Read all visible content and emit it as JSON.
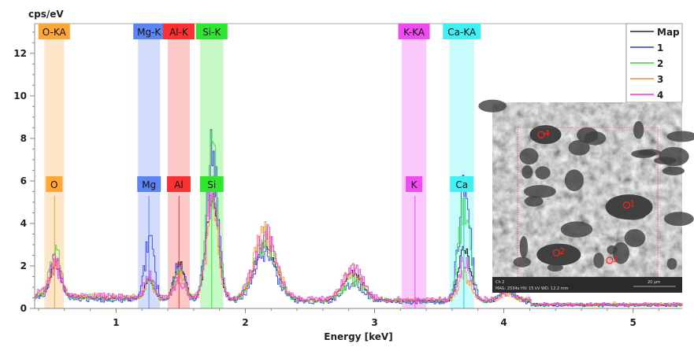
{
  "chart_data": {
    "type": "line",
    "title": "",
    "xlabel": "Energy [keV]",
    "ylabel": "cps/eV",
    "xlim": [
      0.37,
      5.38
    ],
    "ylim": [
      0,
      13.4
    ],
    "xticks": [
      1,
      2,
      3,
      4,
      5
    ],
    "yticks": [
      0,
      2,
      4,
      6,
      8,
      10,
      12
    ],
    "legend_position": "top-right",
    "elements": [
      {
        "label": "O-KA",
        "short": "O",
        "energy": 0.525,
        "band": [
          0.445,
          0.597
        ],
        "color": "#ffa633",
        "band_color": "#fde6c8"
      },
      {
        "label": "Mg-K",
        "short": "Mg",
        "energy": 1.254,
        "band": [
          1.17,
          1.34
        ],
        "color": "#5b84f5",
        "band_color": "#d3dcfb"
      },
      {
        "label": "Al-K",
        "short": "Al",
        "energy": 1.487,
        "band": [
          1.4,
          1.57
        ],
        "color": "#fb3030",
        "band_color": "#fcc8c8"
      },
      {
        "label": "Si-K",
        "short": "Si",
        "energy": 1.74,
        "band": [
          1.65,
          1.83
        ],
        "color": "#2ee62e",
        "band_color": "#c6f9c6"
      },
      {
        "label": "K-KA",
        "short": "K",
        "energy": 3.313,
        "band": [
          3.21,
          3.4
        ],
        "color": "#f24af2",
        "band_color": "#fac8fa"
      },
      {
        "label": "Ca-KA",
        "short": "Ca",
        "energy": 3.691,
        "band": [
          3.58,
          3.77
        ],
        "color": "#3ff0f5",
        "band_color": "#c8fbfc"
      }
    ],
    "peak_energies": [
      0.525,
      1.254,
      1.487,
      1.74,
      2.15,
      2.83,
      3.691,
      4.02
    ],
    "peak_widths": [
      0.04,
      0.035,
      0.04,
      0.045,
      0.085,
      0.075,
      0.045,
      0.05
    ],
    "series": [
      {
        "name": "Map",
        "color": "#222222",
        "background": 0.35,
        "peak_heights": [
          1.5,
          0.9,
          1.7,
          5.0,
          2.6,
          1.3,
          2.5,
          0.5
        ]
      },
      {
        "name": "1",
        "color": "#3030ee",
        "background": 0.3,
        "peak_heights": [
          1.9,
          3.0,
          1.8,
          6.8,
          2.3,
          0.9,
          5.2,
          0.8
        ]
      },
      {
        "name": "2",
        "color": "#33dd33",
        "background": 0.35,
        "peak_heights": [
          2.2,
          0.9,
          1.4,
          7.0,
          2.8,
          1.0,
          4.5,
          0.5
        ]
      },
      {
        "name": "3",
        "color": "#ff8c33",
        "background": 0.4,
        "peak_heights": [
          1.6,
          0.7,
          1.0,
          4.0,
          3.0,
          1.3,
          1.2,
          0.3
        ]
      },
      {
        "name": "4",
        "color": "#ee33ee",
        "background": 0.4,
        "peak_heights": [
          1.4,
          1.0,
          0.8,
          5.5,
          2.9,
          1.4,
          1.8,
          0.4
        ]
      }
    ]
  },
  "sem_image": {
    "channel": "Ch 2",
    "info": "MAG: 2534x    HV: 15 kV    WD: 12.2 mm",
    "scale_bar": "20 µm",
    "spots": [
      {
        "label": "4",
        "rx": 0.27,
        "ry": 0.17
      },
      {
        "label": "1",
        "rx": 0.72,
        "ry": 0.54
      },
      {
        "label": "2",
        "rx": 0.35,
        "ry": 0.79
      },
      {
        "label": "3",
        "rx": 0.63,
        "ry": 0.83
      }
    ]
  }
}
